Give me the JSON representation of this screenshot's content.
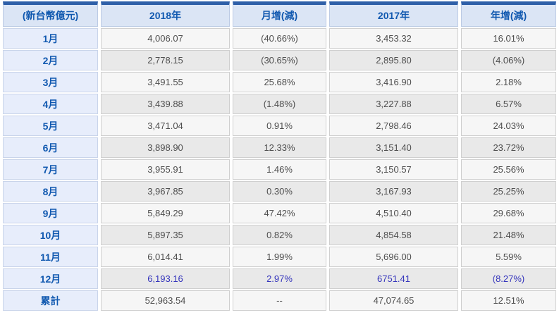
{
  "chart_data": {
    "type": "table",
    "unit_label": "(新台幣億元)",
    "columns": [
      "2018年",
      "月增(減)",
      "2017年",
      "年增(減)"
    ],
    "rows": [
      {
        "label": "1月",
        "values": [
          "4,006.07",
          "(40.66%)",
          "3,453.32",
          "16.01%"
        ],
        "highlight": false
      },
      {
        "label": "2月",
        "values": [
          "2,778.15",
          "(30.65%)",
          "2,895.80",
          "(4.06%)"
        ],
        "highlight": false
      },
      {
        "label": "3月",
        "values": [
          "3,491.55",
          "25.68%",
          "3,416.90",
          "2.18%"
        ],
        "highlight": false
      },
      {
        "label": "4月",
        "values": [
          "3,439.88",
          "(1.48%)",
          "3,227.88",
          "6.57%"
        ],
        "highlight": false
      },
      {
        "label": "5月",
        "values": [
          "3,471.04",
          "0.91%",
          "2,798.46",
          "24.03%"
        ],
        "highlight": false
      },
      {
        "label": "6月",
        "values": [
          "3,898.90",
          "12.33%",
          "3,151.40",
          "23.72%"
        ],
        "highlight": false
      },
      {
        "label": "7月",
        "values": [
          "3,955.91",
          "1.46%",
          "3,150.57",
          "25.56%"
        ],
        "highlight": false
      },
      {
        "label": "8月",
        "values": [
          "3,967.85",
          "0.30%",
          "3,167.93",
          "25.25%"
        ],
        "highlight": false
      },
      {
        "label": "9月",
        "values": [
          "5,849.29",
          "47.42%",
          "4,510.40",
          "29.68%"
        ],
        "highlight": false
      },
      {
        "label": "10月",
        "values": [
          "5,897.35",
          "0.82%",
          "4,854.58",
          "21.48%"
        ],
        "highlight": false
      },
      {
        "label": "11月",
        "values": [
          "6,014.41",
          "1.99%",
          "5,696.00",
          "5.59%"
        ],
        "highlight": false
      },
      {
        "label": "12月",
        "values": [
          "6,193.16",
          "2.97%",
          "6751.41",
          "(8.27%)"
        ],
        "highlight": true
      },
      {
        "label": "累計",
        "values": [
          "52,963.54",
          "--",
          "47,074.65",
          "12.51%"
        ],
        "highlight": false
      }
    ]
  },
  "colors": {
    "header_top_bar": "#2e5fa8",
    "header_background": "#dbe5f5",
    "header_text": "#1159b0",
    "row_label_background": "#e7edfb",
    "row_light_background": "#f6f6f6",
    "row_dark_background": "#e9e9e9",
    "data_text": "#4e4e4e",
    "highlight_text": "#3434bc"
  }
}
